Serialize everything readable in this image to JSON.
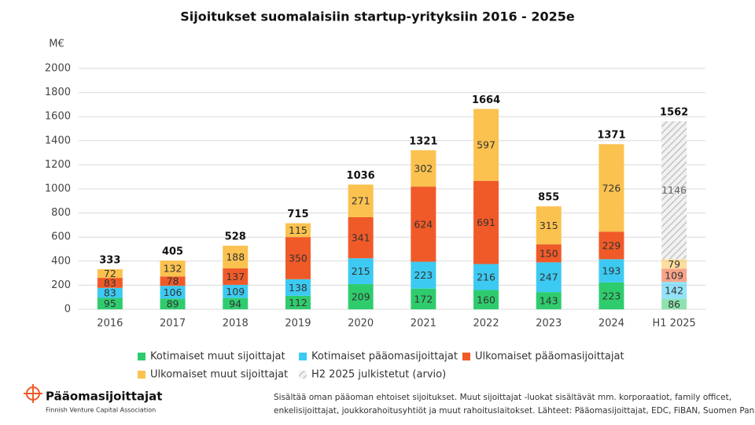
{
  "chart_data": {
    "type": "stacked-bar",
    "title": "Sijoitukset suomalaisiin startup-yrityksiin 2016 - 2025e",
    "y_label": "M€",
    "categories": [
      "2016",
      "2017",
      "2018",
      "2019",
      "2020",
      "2021",
      "2022",
      "2023",
      "2024",
      "H1 2025"
    ],
    "series": [
      {
        "name": "Kotimaiset muut sijoittajat",
        "color": "#2fcc6e",
        "values": [
          95,
          89,
          94,
          112,
          209,
          172,
          160,
          143,
          223,
          86
        ]
      },
      {
        "name": "Kotimaiset pääomasijoittajat",
        "color": "#3ccaf2",
        "values": [
          83,
          106,
          109,
          138,
          215,
          223,
          216,
          247,
          193,
          142
        ]
      },
      {
        "name": "Ulkomaiset pääomasijoittajat",
        "color": "#f05a28",
        "values": [
          83,
          78,
          137,
          350,
          341,
          624,
          691,
          150,
          229,
          109
        ]
      },
      {
        "name": "Ulkomaiset muut sijoittajat",
        "color": "#fbc24f",
        "values": [
          72,
          132,
          188,
          115,
          271,
          302,
          597,
          315,
          726,
          79
        ]
      },
      {
        "name": "H2 2025 julkistetut (arvio)",
        "color": "#c8c8c8",
        "pattern": "diagonal",
        "values": [
          null,
          null,
          null,
          null,
          null,
          null,
          null,
          null,
          null,
          1146
        ]
      }
    ],
    "totals": [
      333,
      405,
      528,
      715,
      1036,
      1321,
      1664,
      855,
      1371,
      1562
    ],
    "ylim": [
      0,
      2000
    ],
    "yticks": [
      0,
      200,
      400,
      600,
      800,
      1000,
      1200,
      1400,
      1600,
      1800,
      2000
    ],
    "grid": true
  },
  "footer": {
    "logo_name": "Pääomasijoittajat",
    "logo_tagline": "Finnish Venture Capital Association",
    "note_lines": [
      "Sisältää oman pääoman ehtoiset sijoitukset. Muut sijoittajat -luokat sisältävät mm. korporaatiot, family officet,",
      "enkelisijoittajat, joukkorahoitusyhtiöt ja muut rahoituslaitokset. Lähteet: Pääomasijoittajat, EDC, FiBAN, Suomen Pankki."
    ]
  }
}
